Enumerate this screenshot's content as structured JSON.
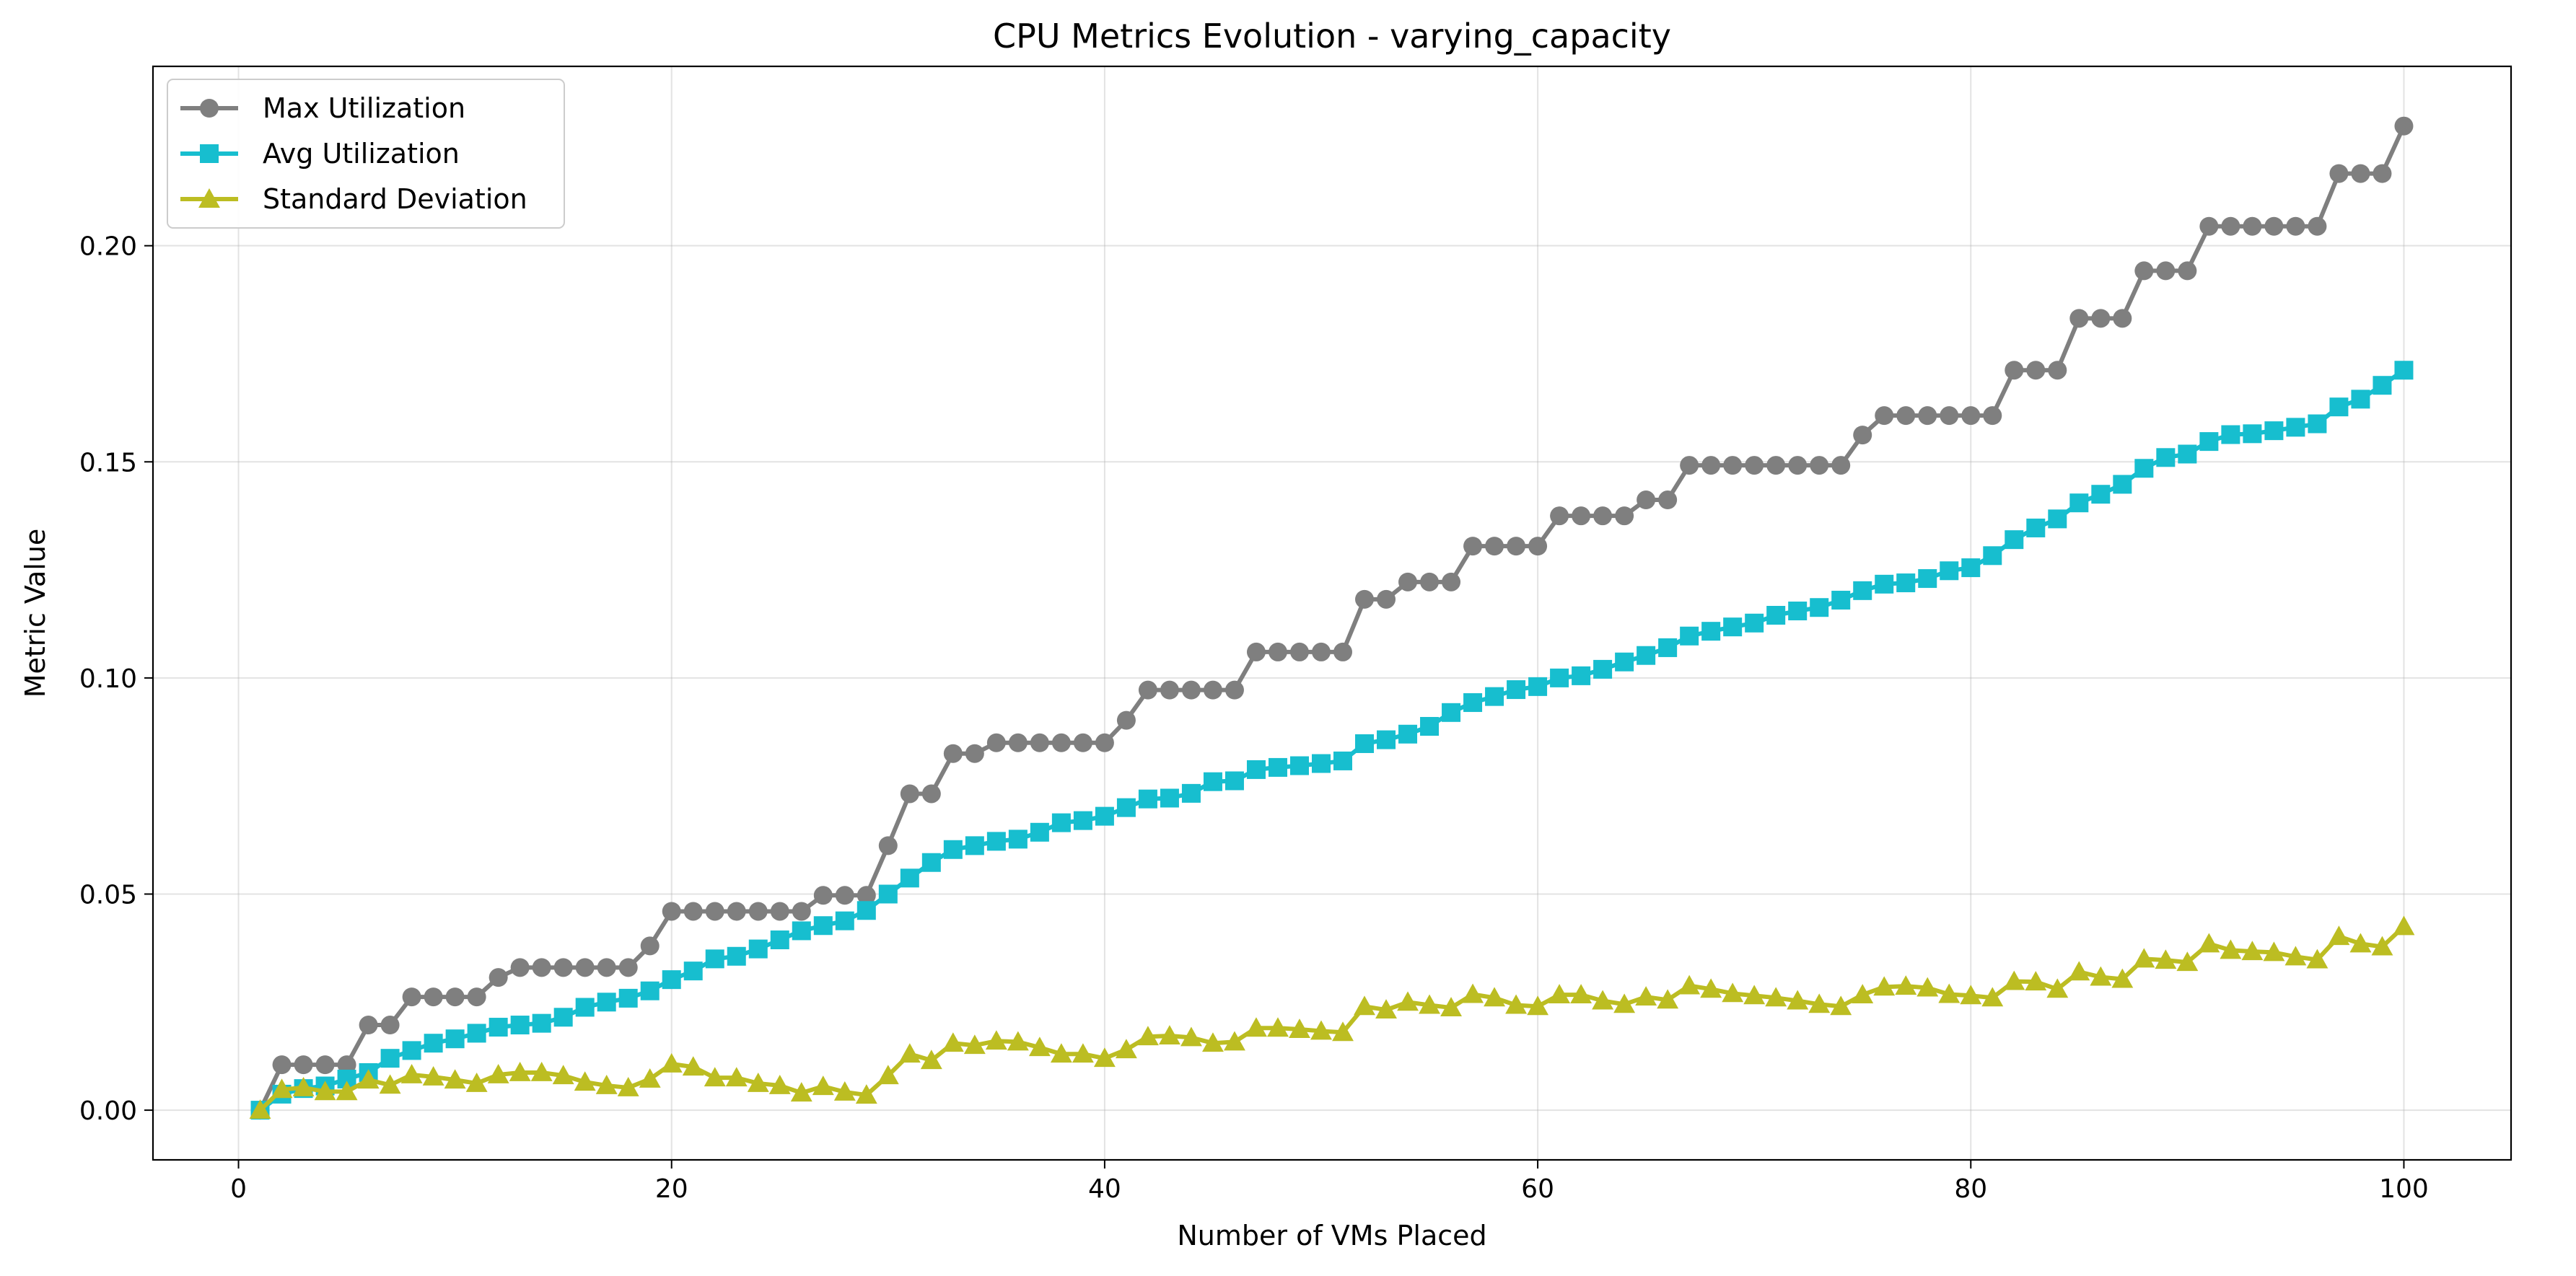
{
  "chart_data": {
    "type": "line",
    "title": "CPU Metrics Evolution - varying_capacity",
    "xlabel": "Number of VMs Placed",
    "ylabel": "Metric Value",
    "xlim": [
      -3.95,
      104.95
    ],
    "ylim": [
      -0.0115,
      0.2415
    ],
    "xticks": [
      0,
      20,
      40,
      60,
      80,
      100
    ],
    "yticks": [
      0.0,
      0.05,
      0.1,
      0.15,
      0.2
    ],
    "ytick_labels": [
      "0.00",
      "0.05",
      "0.10",
      "0.15",
      "0.20"
    ],
    "grid": true,
    "legend_position": "top-left",
    "x": [
      1,
      2,
      3,
      4,
      5,
      6,
      7,
      8,
      9,
      10,
      11,
      12,
      13,
      14,
      15,
      16,
      17,
      18,
      19,
      20,
      21,
      22,
      23,
      24,
      25,
      26,
      27,
      28,
      29,
      30,
      31,
      32,
      33,
      34,
      35,
      36,
      37,
      38,
      39,
      40,
      41,
      42,
      43,
      44,
      45,
      46,
      47,
      48,
      49,
      50,
      51,
      52,
      53,
      54,
      55,
      56,
      57,
      58,
      59,
      60,
      61,
      62,
      63,
      64,
      65,
      66,
      67,
      68,
      69,
      70,
      71,
      72,
      73,
      74,
      75,
      76,
      77,
      78,
      79,
      80,
      81,
      82,
      83,
      84,
      85,
      86,
      87,
      88,
      89,
      90,
      91,
      92,
      93,
      94,
      95,
      96,
      97,
      98,
      99,
      100
    ],
    "series": [
      {
        "name": "Max Utilization",
        "color": "#7f7f7f",
        "marker": "circle",
        "values": [
          0.0,
          0.0105,
          0.0105,
          0.0105,
          0.0105,
          0.0197,
          0.0197,
          0.0262,
          0.0262,
          0.0262,
          0.0262,
          0.0307,
          0.033,
          0.033,
          0.033,
          0.033,
          0.033,
          0.033,
          0.038,
          0.046,
          0.046,
          0.046,
          0.046,
          0.046,
          0.046,
          0.046,
          0.0497,
          0.0497,
          0.0497,
          0.0612,
          0.0732,
          0.0732,
          0.0825,
          0.0825,
          0.085,
          0.085,
          0.085,
          0.085,
          0.085,
          0.085,
          0.0902,
          0.0972,
          0.0972,
          0.0972,
          0.0972,
          0.0972,
          0.106,
          0.106,
          0.106,
          0.106,
          0.106,
          0.1182,
          0.1182,
          0.1222,
          0.1222,
          0.1222,
          0.1305,
          0.1305,
          0.1305,
          0.1305,
          0.1375,
          0.1375,
          0.1375,
          0.1375,
          0.1412,
          0.1412,
          0.1492,
          0.1492,
          0.1492,
          0.1492,
          0.1492,
          0.1492,
          0.1492,
          0.1492,
          0.1562,
          0.1607,
          0.1607,
          0.1607,
          0.1607,
          0.1607,
          0.1607,
          0.1712,
          0.1712,
          0.1712,
          0.1832,
          0.1832,
          0.1832,
          0.1942,
          0.1942,
          0.1942,
          0.2045,
          0.2045,
          0.2045,
          0.2045,
          0.2045,
          0.2045,
          0.2167,
          0.2167,
          0.2167,
          0.2277
        ]
      },
      {
        "name": "Avg Utilization",
        "color": "#17becf",
        "marker": "square",
        "values": [
          0.0,
          0.0037,
          0.005,
          0.0056,
          0.0072,
          0.0087,
          0.012,
          0.0138,
          0.0155,
          0.0165,
          0.0178,
          0.0192,
          0.0197,
          0.0201,
          0.0215,
          0.0238,
          0.025,
          0.0259,
          0.0276,
          0.0302,
          0.0322,
          0.035,
          0.0356,
          0.0373,
          0.0394,
          0.0415,
          0.0427,
          0.0438,
          0.0462,
          0.05,
          0.0537,
          0.0573,
          0.0603,
          0.0612,
          0.0622,
          0.0627,
          0.0643,
          0.0665,
          0.067,
          0.068,
          0.07,
          0.072,
          0.0722,
          0.0733,
          0.076,
          0.0762,
          0.0788,
          0.0793,
          0.0797,
          0.0802,
          0.0808,
          0.0848,
          0.0857,
          0.087,
          0.0888,
          0.092,
          0.0943,
          0.0957,
          0.0973,
          0.098,
          0.1,
          0.1005,
          0.102,
          0.1037,
          0.1052,
          0.107,
          0.1097,
          0.1108,
          0.1118,
          0.1127,
          0.1145,
          0.1155,
          0.1163,
          0.118,
          0.1202,
          0.1217,
          0.122,
          0.123,
          0.1248,
          0.1255,
          0.1283,
          0.132,
          0.1347,
          0.1368,
          0.1405,
          0.1425,
          0.1448,
          0.1485,
          0.151,
          0.1518,
          0.1547,
          0.1563,
          0.1565,
          0.1572,
          0.158,
          0.1588,
          0.1627,
          0.1645,
          0.1677,
          0.1712
        ]
      },
      {
        "name": "Standard Deviation",
        "color": "#bcbd22",
        "marker": "triangle",
        "values": [
          0.0,
          0.0048,
          0.0052,
          0.0043,
          0.0043,
          0.007,
          0.0058,
          0.0082,
          0.0077,
          0.007,
          0.0062,
          0.0082,
          0.0087,
          0.0087,
          0.008,
          0.0065,
          0.0057,
          0.0052,
          0.0072,
          0.0107,
          0.01,
          0.0075,
          0.0075,
          0.0062,
          0.0057,
          0.004,
          0.0055,
          0.0042,
          0.0035,
          0.008,
          0.013,
          0.0115,
          0.0155,
          0.015,
          0.016,
          0.0158,
          0.0145,
          0.013,
          0.013,
          0.012,
          0.014,
          0.017,
          0.0172,
          0.0168,
          0.0155,
          0.0158,
          0.019,
          0.019,
          0.0187,
          0.0183,
          0.018,
          0.024,
          0.0232,
          0.025,
          0.0243,
          0.0237,
          0.0268,
          0.026,
          0.0243,
          0.024,
          0.0267,
          0.0267,
          0.0253,
          0.0245,
          0.0262,
          0.0255,
          0.0288,
          0.028,
          0.027,
          0.0265,
          0.026,
          0.0253,
          0.0245,
          0.024,
          0.0267,
          0.0285,
          0.0287,
          0.0283,
          0.0268,
          0.0265,
          0.026,
          0.0298,
          0.0297,
          0.028,
          0.032,
          0.0308,
          0.0303,
          0.035,
          0.0347,
          0.0342,
          0.0385,
          0.037,
          0.0367,
          0.0365,
          0.0355,
          0.0348,
          0.0402,
          0.0385,
          0.0378,
          0.0425
        ]
      }
    ]
  }
}
